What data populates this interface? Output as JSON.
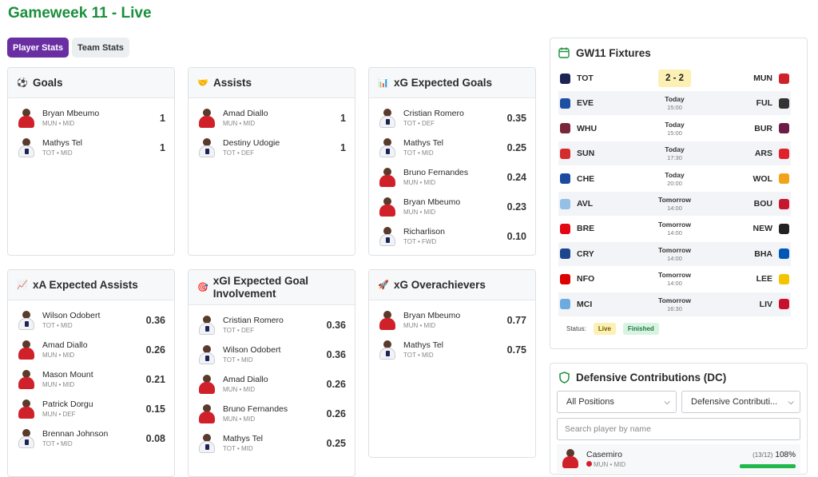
{
  "page": {
    "title": "Gameweek 11 - Live"
  },
  "tabs": [
    {
      "label": "Player Stats"
    },
    {
      "label": "Team Stats"
    }
  ],
  "cards": [
    {
      "title": "Goals",
      "icon": "soccer-ball-icon",
      "rows": [
        {
          "name": "Bryan Mbeumo",
          "team": "MUN",
          "pos": "MID",
          "value": "1"
        },
        {
          "name": "Mathys Tel",
          "team": "TOT",
          "pos": "MID",
          "value": "1"
        }
      ]
    },
    {
      "title": "Assists",
      "icon": "handshake-icon",
      "rows": [
        {
          "name": "Amad Diallo",
          "team": "MUN",
          "pos": "MID",
          "value": "1"
        },
        {
          "name": "Destiny Udogie",
          "team": "TOT",
          "pos": "DEF",
          "value": "1"
        }
      ]
    },
    {
      "title": "xG Expected Goals",
      "icon": "bar-chart-icon",
      "rows": [
        {
          "name": "Cristian Romero",
          "team": "TOT",
          "pos": "DEF",
          "value": "0.35"
        },
        {
          "name": "Mathys Tel",
          "team": "TOT",
          "pos": "MID",
          "value": "0.25"
        },
        {
          "name": "Bruno Fernandes",
          "team": "MUN",
          "pos": "MID",
          "value": "0.24"
        },
        {
          "name": "Bryan Mbeumo",
          "team": "MUN",
          "pos": "MID",
          "value": "0.23"
        },
        {
          "name": "Richarlison",
          "team": "TOT",
          "pos": "FWD",
          "value": "0.10"
        }
      ]
    },
    {
      "title": "xA Expected Assists",
      "icon": "trend-chart-icon",
      "rows": [
        {
          "name": "Wilson Odobert",
          "team": "TOT",
          "pos": "MID",
          "value": "0.36"
        },
        {
          "name": "Amad Diallo",
          "team": "MUN",
          "pos": "MID",
          "value": "0.26"
        },
        {
          "name": "Mason Mount",
          "team": "MUN",
          "pos": "MID",
          "value": "0.21"
        },
        {
          "name": "Patrick Dorgu",
          "team": "MUN",
          "pos": "DEF",
          "value": "0.15"
        },
        {
          "name": "Brennan Johnson",
          "team": "TOT",
          "pos": "MID",
          "value": "0.08"
        }
      ]
    },
    {
      "title": "xGI Expected Goal Involvement",
      "icon": "target-icon",
      "rows": [
        {
          "name": "Cristian Romero",
          "team": "TOT",
          "pos": "DEF",
          "value": "0.36"
        },
        {
          "name": "Wilson Odobert",
          "team": "TOT",
          "pos": "MID",
          "value": "0.36"
        },
        {
          "name": "Amad Diallo",
          "team": "MUN",
          "pos": "MID",
          "value": "0.26"
        },
        {
          "name": "Bruno Fernandes",
          "team": "MUN",
          "pos": "MID",
          "value": "0.26"
        },
        {
          "name": "Mathys Tel",
          "team": "TOT",
          "pos": "MID",
          "value": "0.25"
        }
      ]
    },
    {
      "title": "xG Overachievers",
      "icon": "rocket-icon",
      "rows": [
        {
          "name": "Bryan Mbeumo",
          "team": "MUN",
          "pos": "MID",
          "value": "0.77"
        },
        {
          "name": "Mathys Tel",
          "team": "TOT",
          "pos": "MID",
          "value": "0.75"
        }
      ]
    }
  ],
  "fixtures": {
    "title": "GW11 Fixtures",
    "items": [
      {
        "home": "TOT",
        "away": "MUN",
        "score": "2 - 2",
        "day": "",
        "time": "",
        "home_color": "#1d2455",
        "away_color": "#d0202a"
      },
      {
        "home": "EVE",
        "away": "FUL",
        "score": "",
        "day": "Today",
        "time": "15:00",
        "home_color": "#1f4fa3",
        "away_color": "#333333"
      },
      {
        "home": "WHU",
        "away": "BUR",
        "score": "",
        "day": "Today",
        "time": "15:00",
        "home_color": "#7a263a",
        "away_color": "#6c1d45"
      },
      {
        "home": "SUN",
        "away": "ARS",
        "score": "",
        "day": "Today",
        "time": "17:30",
        "home_color": "#d42c2c",
        "away_color": "#e0202b"
      },
      {
        "home": "CHE",
        "away": "WOL",
        "score": "",
        "day": "Today",
        "time": "20:00",
        "home_color": "#1a4ba0",
        "away_color": "#f1a31b"
      },
      {
        "home": "AVL",
        "away": "BOU",
        "score": "",
        "day": "Tomorrow",
        "time": "14:00",
        "home_color": "#95bfe5",
        "away_color": "#c7172f"
      },
      {
        "home": "BRE",
        "away": "NEW",
        "score": "",
        "day": "Tomorrow",
        "time": "14:00",
        "home_color": "#e30613",
        "away_color": "#222222"
      },
      {
        "home": "CRY",
        "away": "BHA",
        "score": "",
        "day": "Tomorrow",
        "time": "14:00",
        "home_color": "#1b458f",
        "away_color": "#0057b8"
      },
      {
        "home": "NFO",
        "away": "LEE",
        "score": "",
        "day": "Tomorrow",
        "time": "14:00",
        "home_color": "#dd0000",
        "away_color": "#f5c400"
      },
      {
        "home": "MCI",
        "away": "LIV",
        "score": "",
        "day": "Tomorrow",
        "time": "16:30",
        "home_color": "#6cabdd",
        "away_color": "#c8102e"
      }
    ],
    "status_label": "Status:",
    "live_label": "Live",
    "finished_label": "Finished"
  },
  "dc": {
    "title": "Defensive Contributions (DC)",
    "positions_select": "All Positions",
    "metric_select": "Defensive Contributi...",
    "search_placeholder": "Search player by name",
    "top": {
      "name": "Casemiro",
      "team": "MUN",
      "pos": "MID",
      "ratio": "(13/12)",
      "pct": "108%",
      "progress": 1.0
    }
  },
  "colors": {
    "title_green": "#1a8f3c",
    "tab_active": "#6a2ea3",
    "live": "#fdf0b5",
    "finished": "#d8f3e1",
    "progress": "#1fb84a"
  }
}
